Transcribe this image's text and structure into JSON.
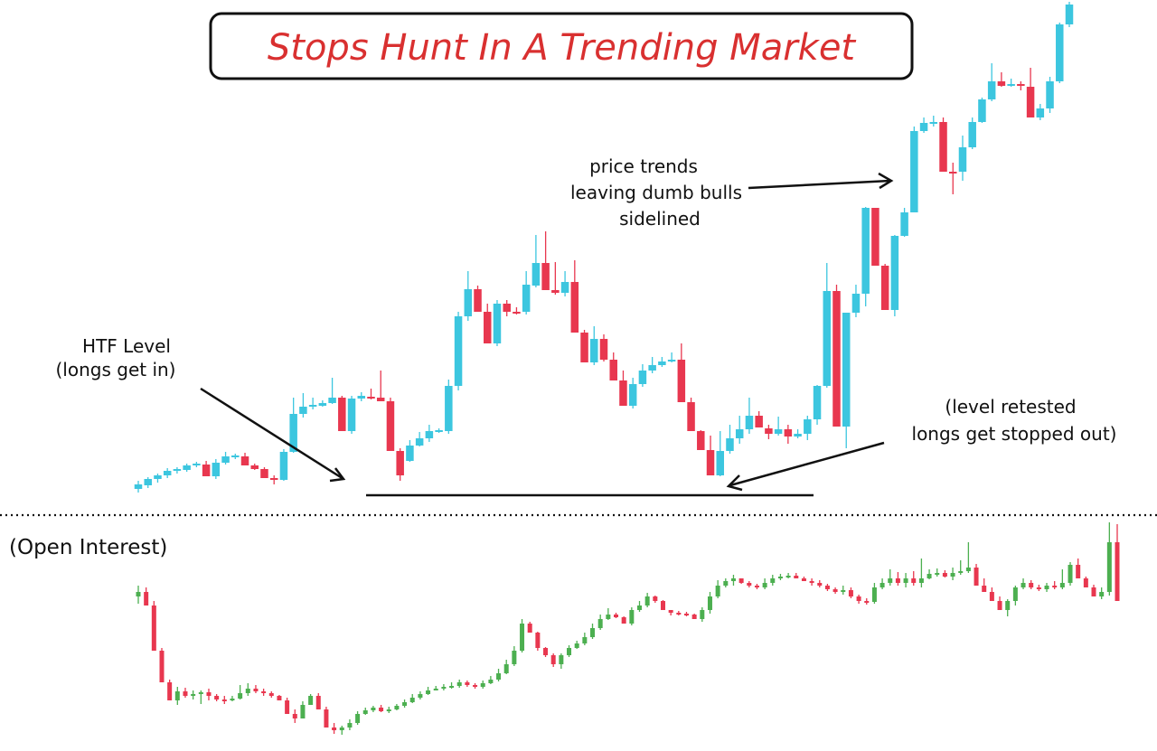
{
  "title": "Stops Hunt In A Trending Market",
  "annotations": {
    "htf_level": [
      "HTF Level",
      "(longs get in)"
    ],
    "price_trends": [
      "price trends",
      "leaving dumb bulls",
      "sidelined"
    ],
    "retest": [
      "(level retested",
      "longs get stopped out)"
    ],
    "panel_label": "(Open Interest)"
  },
  "colors": {
    "title_text": "#d93030",
    "bull_price": "#3cc6df",
    "bear_price": "#e8374f",
    "bull_oi": "#4caf50",
    "bear_oi": "#e8374f",
    "ink": "#111111"
  },
  "chart_data": [
    {
      "type": "candlestick",
      "title": "Stops Hunt In A Trending Market",
      "xlabel": "",
      "ylabel": "",
      "grid": false,
      "htf_level_line": 548,
      "candles_ohlc": [
        [
          541,
          536,
          545,
          532
        ],
        [
          537,
          530,
          540,
          528
        ],
        [
          530,
          526,
          534,
          524
        ],
        [
          526,
          521,
          529,
          518
        ],
        [
          521,
          519,
          524,
          517
        ],
        [
          520,
          515,
          522,
          513
        ],
        [
          515,
          513,
          517,
          511
        ],
        [
          514,
          527,
          518,
          510
        ],
        [
          527,
          512,
          530,
          508
        ],
        [
          512,
          505,
          514,
          500
        ],
        [
          505,
          504,
          508,
          502
        ],
        [
          505,
          515,
          510,
          501
        ],
        [
          515,
          519,
          520,
          513
        ],
        [
          519,
          529,
          522,
          517
        ],
        [
          529,
          530,
          536,
          526
        ],
        [
          531,
          500,
          532,
          497
        ],
        [
          500,
          458,
          501,
          440
        ],
        [
          458,
          450,
          462,
          435
        ],
        [
          450,
          448,
          453,
          440
        ],
        [
          449,
          446,
          450,
          443
        ],
        [
          446,
          440,
          447,
          418
        ],
        [
          440,
          477,
          442,
          438
        ],
        [
          477,
          441,
          480,
          438
        ],
        [
          441,
          438,
          444,
          434
        ],
        [
          439,
          439,
          442,
          430
        ],
        [
          440,
          444,
          443,
          410
        ],
        [
          444,
          499,
          450,
          440
        ],
        [
          499,
          526,
          532,
          496
        ],
        [
          510,
          493,
          511,
          487
        ],
        [
          493,
          485,
          494,
          478
        ],
        [
          485,
          477,
          489,
          470
        ],
        [
          477,
          476,
          479,
          474
        ],
        [
          477,
          427,
          480,
          420
        ],
        [
          427,
          350,
          432,
          345
        ],
        [
          350,
          320,
          355,
          300
        ],
        [
          320,
          345,
          330,
          316
        ],
        [
          345,
          380,
          350,
          336
        ],
        [
          380,
          336,
          383,
          332
        ],
        [
          336,
          345,
          350,
          332
        ],
        [
          345,
          345,
          348,
          340
        ],
        [
          345,
          315,
          348,
          300
        ],
        [
          316,
          291,
          318,
          260
        ],
        [
          291,
          321,
          294,
          256
        ],
        [
          321,
          324,
          326,
          290
        ],
        [
          324,
          312,
          328,
          300
        ],
        [
          312,
          368,
          313,
          288
        ],
        [
          368,
          401,
          373,
          365
        ],
        [
          401,
          375,
          404,
          361
        ],
        [
          375,
          398,
          400,
          370
        ],
        [
          398,
          421,
          402,
          390
        ],
        [
          421,
          449,
          427,
          410
        ],
        [
          449,
          425,
          452,
          418
        ],
        [
          425,
          410,
          428,
          403
        ],
        [
          410,
          404,
          413,
          395
        ],
        [
          404,
          400,
          406,
          395
        ],
        [
          400,
          398,
          401,
          390
        ],
        [
          398,
          445,
          400,
          380
        ],
        [
          445,
          477,
          450,
          440
        ],
        [
          477,
          498,
          485,
          476
        ],
        [
          498,
          526,
          525,
          482
        ],
        [
          526,
          499,
          527,
          477
        ],
        [
          499,
          485,
          502,
          470
        ],
        [
          485,
          475,
          491,
          460
        ],
        [
          475,
          460,
          480,
          440
        ],
        [
          460,
          473,
          466,
          455
        ],
        [
          474,
          480,
          486,
          470
        ],
        [
          480,
          475,
          482,
          461
        ],
        [
          475,
          483,
          491,
          470
        ],
        [
          483,
          480,
          485,
          475
        ],
        [
          480,
          464,
          487,
          460
        ],
        [
          464,
          427,
          470,
          426
        ],
        [
          427,
          322,
          429,
          291
        ],
        [
          322,
          472,
          323,
          315
        ],
        [
          472,
          346,
          496,
          346
        ],
        [
          346,
          325,
          351,
          315
        ],
        [
          325,
          230,
          339,
          229
        ],
        [
          230,
          294,
          231,
          290
        ],
        [
          294,
          343,
          342,
          292
        ],
        [
          343,
          261,
          350,
          260
        ],
        [
          261,
          235,
          262,
          230
        ],
        [
          235,
          145,
          235,
          140
        ],
        [
          145,
          136,
          147,
          130
        ],
        [
          136,
          135,
          140,
          128
        ],
        [
          135,
          190,
          145,
          130
        ],
        [
          190,
          190,
          215,
          180
        ],
        [
          190,
          163,
          200,
          150
        ],
        [
          163,
          135,
          165,
          130
        ],
        [
          135,
          110,
          136,
          108
        ],
        [
          110,
          90,
          112,
          70
        ],
        [
          90,
          95,
          96,
          80
        ],
        [
          95,
          93,
          96,
          87
        ],
        [
          93,
          95,
          100,
          90
        ],
        [
          96,
          130,
          99,
          75
        ],
        [
          130,
          120,
          133,
          115
        ],
        [
          120,
          90,
          125,
          85
        ],
        [
          90,
          27,
          92,
          25
        ],
        [
          27,
          5,
          30,
          2
        ]
      ]
    },
    {
      "type": "candlestick",
      "title": "(Open Interest)",
      "xlabel": "",
      "ylabel": "",
      "grid": false,
      "candles_ohlc": [
        [
          660,
          655,
          668,
          648
        ],
        [
          655,
          670,
          662,
          650
        ],
        [
          670,
          720,
          675,
          665
        ],
        [
          720,
          755,
          725,
          717
        ],
        [
          755,
          775,
          759,
          752
        ],
        [
          775,
          765,
          780,
          760
        ],
        [
          765,
          770,
          772,
          761
        ],
        [
          770,
          768,
          774,
          764
        ],
        [
          768,
          766,
          779,
          764
        ],
        [
          766,
          770,
          775,
          762
        ],
        [
          770,
          774,
          776,
          768
        ],
        [
          774,
          775,
          779,
          770
        ],
        [
          775,
          773,
          776,
          770
        ],
        [
          773,
          767,
          774,
          758
        ],
        [
          767,
          762,
          770,
          756
        ],
        [
          762,
          765,
          767,
          758
        ],
        [
          765,
          767,
          770,
          762
        ],
        [
          767,
          770,
          772,
          765
        ],
        [
          770,
          775,
          772,
          769
        ],
        [
          775,
          790,
          780,
          772
        ],
        [
          790,
          795,
          800,
          785
        ],
        [
          795,
          780,
          793,
          776
        ],
        [
          780,
          770,
          775,
          768
        ],
        [
          770,
          785,
          784,
          767
        ],
        [
          785,
          805,
          792,
          782
        ],
        [
          805,
          808,
          812,
          800
        ],
        [
          808,
          805,
          813,
          803
        ],
        [
          805,
          800,
          808,
          796
        ],
        [
          800,
          790,
          802,
          787
        ],
        [
          790,
          786,
          791,
          783
        ],
        [
          786,
          783,
          788,
          781
        ],
        [
          783,
          787,
          788,
          780
        ],
        [
          787,
          785,
          789,
          782
        ],
        [
          785,
          781,
          786,
          779
        ],
        [
          781,
          777,
          783,
          774
        ],
        [
          777,
          772,
          778,
          768
        ],
        [
          772,
          768,
          774,
          765
        ],
        [
          768,
          764,
          769,
          760
        ],
        [
          764,
          762,
          764,
          759
        ],
        [
          762,
          760,
          764,
          757
        ],
        [
          760,
          759,
          762,
          755
        ],
        [
          759,
          755,
          761,
          752
        ],
        [
          755,
          758,
          760,
          753
        ],
        [
          758,
          760,
          762,
          756
        ],
        [
          760,
          756,
          762,
          753
        ],
        [
          756,
          752,
          757,
          748
        ],
        [
          752,
          745,
          754,
          740
        ],
        [
          745,
          735,
          746,
          730
        ],
        [
          735,
          720,
          737,
          715
        ],
        [
          720,
          690,
          722,
          685
        ],
        [
          690,
          700,
          692,
          688
        ],
        [
          700,
          717,
          720,
          699
        ],
        [
          717,
          725,
          727,
          716
        ],
        [
          725,
          735,
          738,
          723
        ],
        [
          735,
          725,
          740,
          723
        ],
        [
          725,
          717,
          727,
          714
        ],
        [
          717,
          712,
          718,
          709
        ],
        [
          712,
          705,
          714,
          700
        ],
        [
          705,
          695,
          707,
          690
        ],
        [
          695,
          685,
          697,
          680
        ],
        [
          685,
          680,
          686,
          673
        ],
        [
          680,
          683,
          684,
          678
        ],
        [
          683,
          690,
          688,
          682
        ],
        [
          690,
          675,
          692,
          672
        ],
        [
          675,
          670,
          677,
          665
        ],
        [
          670,
          660,
          672,
          656
        ],
        [
          660,
          665,
          667,
          659
        ],
        [
          665,
          675,
          675,
          664
        ],
        [
          675,
          678,
          681,
          675
        ],
        [
          678,
          679,
          681,
          676
        ],
        [
          679,
          680,
          682,
          677
        ],
        [
          680,
          685,
          682,
          679
        ],
        [
          685,
          675,
          688,
          672
        ],
        [
          675,
          660,
          679,
          655
        ],
        [
          660,
          648,
          662,
          642
        ],
        [
          648,
          643,
          650,
          640
        ],
        [
          643,
          640,
          648,
          636
        ],
        [
          640,
          645,
          646,
          640
        ],
        [
          645,
          648,
          650,
          643
        ],
        [
          648,
          650,
          652,
          646
        ],
        [
          650,
          645,
          652,
          640
        ],
        [
          645,
          640,
          648,
          636
        ],
        [
          640,
          638,
          642,
          635
        ],
        [
          638,
          637,
          640,
          634
        ],
        [
          637,
          640,
          638,
          634
        ],
        [
          640,
          643,
          642,
          638
        ],
        [
          643,
          645,
          648,
          640
        ],
        [
          645,
          648,
          650,
          642
        ],
        [
          648,
          652,
          654,
          646
        ],
        [
          652,
          655,
          657,
          650
        ],
        [
          655,
          653,
          658,
          648
        ],
        [
          653,
          660,
          662,
          650
        ],
        [
          660,
          665,
          668,
          658
        ],
        [
          665,
          666,
          669,
          662
        ],
        [
          666,
          650,
          668,
          645
        ],
        [
          650,
          645,
          652,
          640
        ],
        [
          645,
          640,
          648,
          630
        ],
        [
          640,
          645,
          648,
          633
        ],
        [
          645,
          640,
          650,
          634
        ],
        [
          640,
          645,
          648,
          632
        ],
        [
          645,
          640,
          650,
          618
        ],
        [
          640,
          635,
          641,
          630
        ],
        [
          635,
          634,
          638,
          629
        ],
        [
          634,
          638,
          639,
          631
        ],
        [
          638,
          634,
          642,
          628
        ],
        [
          634,
          632,
          636,
          620
        ],
        [
          632,
          628,
          634,
          600
        ],
        [
          628,
          648,
          633,
          624
        ],
        [
          648,
          655,
          650,
          640
        ],
        [
          655,
          665,
          660,
          650
        ],
        [
          665,
          675,
          670,
          660
        ],
        [
          675,
          665,
          682,
          663
        ],
        [
          665,
          650,
          670,
          648
        ],
        [
          650,
          645,
          652,
          640
        ],
        [
          645,
          650,
          652,
          642
        ],
        [
          650,
          652,
          654,
          647
        ],
        [
          652,
          648,
          655,
          645
        ],
        [
          648,
          650,
          652,
          643
        ],
        [
          650,
          645,
          652,
          630
        ],
        [
          645,
          625,
          648,
          622
        ],
        [
          625,
          640,
          627,
          618
        ],
        [
          640,
          650,
          645,
          638
        ],
        [
          650,
          660,
          655,
          647
        ],
        [
          660,
          655,
          663,
          650
        ],
        [
          655,
          600,
          659,
          578
        ],
        [
          600,
          665,
          605,
          580
        ]
      ]
    }
  ]
}
